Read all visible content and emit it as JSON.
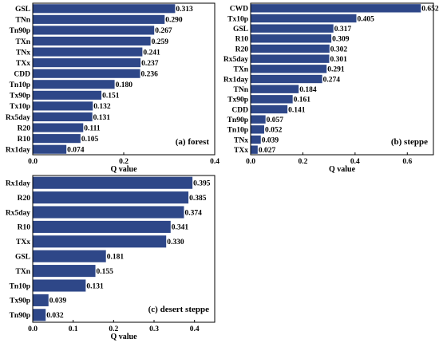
{
  "chart_data": [
    {
      "type": "bar",
      "orientation": "horizontal",
      "annotation": "(a) forest",
      "xlabel": "Q value",
      "xlim": [
        0,
        0.4
      ],
      "xticks": [
        "0.0",
        "0.2",
        "0.4"
      ],
      "bar_color": "#2e4788",
      "categories": [
        "GSL",
        "TNn",
        "Tn90p",
        "TXn",
        "TNx",
        "TXx",
        "CDD",
        "Tn10p",
        "Tx90p",
        "Tx10p",
        "Rx5day",
        "R20",
        "R10",
        "Rx1day"
      ],
      "values": [
        0.313,
        0.29,
        0.267,
        0.259,
        0.241,
        0.237,
        0.236,
        0.18,
        0.151,
        0.132,
        0.131,
        0.111,
        0.105,
        0.074
      ],
      "value_labels": [
        "0.313",
        "0.290",
        "0.267",
        "0.259",
        "0.241",
        "0.237",
        "0.236",
        "0.180",
        "0.151",
        "0.132",
        "0.131",
        "0.111",
        "0.105",
        "0.074"
      ]
    },
    {
      "type": "bar",
      "orientation": "horizontal",
      "annotation": "(b) steppe",
      "xlabel": "Q value",
      "xlim": [
        0,
        0.7
      ],
      "xticks": [
        "0.0",
        "0.2",
        "0.4",
        "0.6"
      ],
      "bar_color": "#2e4788",
      "categories": [
        "CWD",
        "Tx10p",
        "GSL",
        "R10",
        "R20",
        "Rx5day",
        "TXn",
        "Rx1day",
        "TNn",
        "Tx90p",
        "CDD",
        "Tn90p",
        "Tn10p",
        "TNx",
        "TXx"
      ],
      "values": [
        0.652,
        0.405,
        0.317,
        0.309,
        0.302,
        0.301,
        0.291,
        0.274,
        0.184,
        0.161,
        0.141,
        0.057,
        0.052,
        0.039,
        0.027
      ],
      "value_labels": [
        "0.652",
        "0.405",
        "0.317",
        "0.309",
        "0.302",
        "0.301",
        "0.291",
        "0.274",
        "0.184",
        "0.161",
        "0.141",
        "0.057",
        "0.052",
        "0.039",
        "0.027"
      ]
    },
    {
      "type": "bar",
      "orientation": "horizontal",
      "annotation": "(c) desert steppe",
      "xlabel": "Q value",
      "xlim": [
        0,
        0.45
      ],
      "xticks": [
        "0.0",
        "0.1",
        "0.2",
        "0.3",
        "0.4"
      ],
      "bar_color": "#2e4788",
      "categories": [
        "Rx1day",
        "R20",
        "Rx5day",
        "R10",
        "TXx",
        "GSL",
        "TXn",
        "Tn10p",
        "Tx90p",
        "Tn90p"
      ],
      "values": [
        0.395,
        0.385,
        0.374,
        0.341,
        0.33,
        0.181,
        0.155,
        0.131,
        0.039,
        0.032
      ],
      "value_labels": [
        "0.395",
        "0.385",
        "0.374",
        "0.341",
        "0.330",
        "0.181",
        "0.155",
        "0.131",
        "0.039",
        "0.032"
      ]
    }
  ]
}
